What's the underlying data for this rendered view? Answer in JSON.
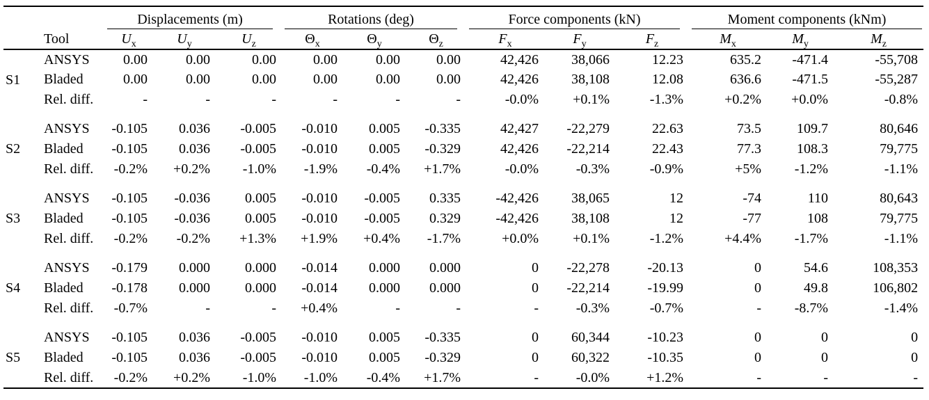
{
  "table": {
    "tool_header": "Tool",
    "groups": [
      {
        "label": "Displacements (m)",
        "italic": true,
        "columns": [
          [
            "U",
            "x"
          ],
          [
            "U",
            "y"
          ],
          [
            "U",
            "z"
          ]
        ]
      },
      {
        "label": "Rotations (deg)",
        "italic": false,
        "columns": [
          [
            "Θ",
            "x"
          ],
          [
            "Θ",
            "y"
          ],
          [
            "Θ",
            "z"
          ]
        ]
      },
      {
        "label": "Force components (kN)",
        "italic": true,
        "columns": [
          [
            "F",
            "x"
          ],
          [
            "F",
            "y"
          ],
          [
            "F",
            "z"
          ]
        ]
      },
      {
        "label": "Moment components (kNm)",
        "italic": true,
        "columns": [
          [
            "M",
            "x"
          ],
          [
            "M",
            "y"
          ],
          [
            "M",
            "z"
          ]
        ]
      }
    ],
    "sections": [
      {
        "id": "S1",
        "rows": [
          {
            "tool": "ANSYS",
            "values": [
              "0.00",
              "0.00",
              "0.00",
              "0.00",
              "0.00",
              "0.00",
              "42,426",
              "38,066",
              "12.23",
              "635.2",
              "-471.4",
              "-55,708"
            ]
          },
          {
            "tool": "Bladed",
            "values": [
              "0.00",
              "0.00",
              "0.00",
              "0.00",
              "0.00",
              "0.00",
              "42,426",
              "38,108",
              "12.08",
              "636.6",
              "-471.5",
              "-55,287"
            ]
          },
          {
            "tool": "Rel. diff.",
            "values": [
              "-",
              "-",
              "-",
              "-",
              "-",
              "-",
              "-0.0%",
              "+0.1%",
              "-1.3%",
              "+0.2%",
              "+0.0%",
              "-0.8%"
            ]
          }
        ]
      },
      {
        "id": "S2",
        "rows": [
          {
            "tool": "ANSYS",
            "values": [
              "-0.105",
              "0.036",
              "-0.005",
              "-0.010",
              "0.005",
              "-0.335",
              "42,427",
              "-22,279",
              "22.63",
              "73.5",
              "109.7",
              "80,646"
            ]
          },
          {
            "tool": "Bladed",
            "values": [
              "-0.105",
              "0.036",
              "-0.005",
              "-0.010",
              "0.005",
              "-0.329",
              "42,426",
              "-22,214",
              "22.43",
              "77.3",
              "108.3",
              "79,775"
            ]
          },
          {
            "tool": "Rel. diff.",
            "values": [
              "-0.2%",
              "+0.2%",
              "-1.0%",
              "-1.9%",
              "-0.4%",
              "+1.7%",
              "-0.0%",
              "-0.3%",
              "-0.9%",
              "+5%",
              "-1.2%",
              "-1.1%"
            ]
          }
        ]
      },
      {
        "id": "S3",
        "rows": [
          {
            "tool": "ANSYS",
            "values": [
              "-0.105",
              "-0.036",
              "0.005",
              "-0.010",
              "-0.005",
              "0.335",
              "-42,426",
              "38,065",
              "12",
              "-74",
              "110",
              "80,643"
            ]
          },
          {
            "tool": "Bladed",
            "values": [
              "-0.105",
              "-0.036",
              "0.005",
              "-0.010",
              "-0.005",
              "0.329",
              "-42,426",
              "38,108",
              "12",
              "-77",
              "108",
              "79,775"
            ]
          },
          {
            "tool": "Rel. diff.",
            "values": [
              "-0.2%",
              "-0.2%",
              "+1.3%",
              "+1.9%",
              "+0.4%",
              "-1.7%",
              "+0.0%",
              "+0.1%",
              "-1.2%",
              "+4.4%",
              "-1.7%",
              "-1.1%"
            ]
          }
        ]
      },
      {
        "id": "S4",
        "rows": [
          {
            "tool": "ANSYS",
            "values": [
              "-0.179",
              "0.000",
              "0.000",
              "-0.014",
              "0.000",
              "0.000",
              "0",
              "-22,278",
              "-20.13",
              "0",
              "54.6",
              "108,353"
            ]
          },
          {
            "tool": "Bladed",
            "values": [
              "-0.178",
              "0.000",
              "0.000",
              "-0.014",
              "0.000",
              "0.000",
              "0",
              "-22,214",
              "-19.99",
              "0",
              "49.8",
              "106,802"
            ]
          },
          {
            "tool": "Rel. diff.",
            "values": [
              "-0.7%",
              "-",
              "-",
              "+0.4%",
              "-",
              "-",
              "-",
              "-0.3%",
              "-0.7%",
              "-",
              "-8.7%",
              "-1.4%"
            ]
          }
        ]
      },
      {
        "id": "S5",
        "rows": [
          {
            "tool": "ANSYS",
            "values": [
              "-0.105",
              "0.036",
              "-0.005",
              "-0.010",
              "0.005",
              "-0.335",
              "0",
              "60,344",
              "-10.23",
              "0",
              "0",
              "0"
            ]
          },
          {
            "tool": "Bladed",
            "values": [
              "-0.105",
              "0.036",
              "-0.005",
              "-0.010",
              "0.005",
              "-0.329",
              "0",
              "60,322",
              "-10.35",
              "0",
              "0",
              "0"
            ]
          },
          {
            "tool": "Rel. diff.",
            "values": [
              "-0.2%",
              "+0.2%",
              "-1.0%",
              "-1.0%",
              "-0.4%",
              "+1.7%",
              "-",
              "-0.0%",
              "+1.2%",
              "-",
              "-",
              "-"
            ]
          }
        ]
      }
    ]
  }
}
